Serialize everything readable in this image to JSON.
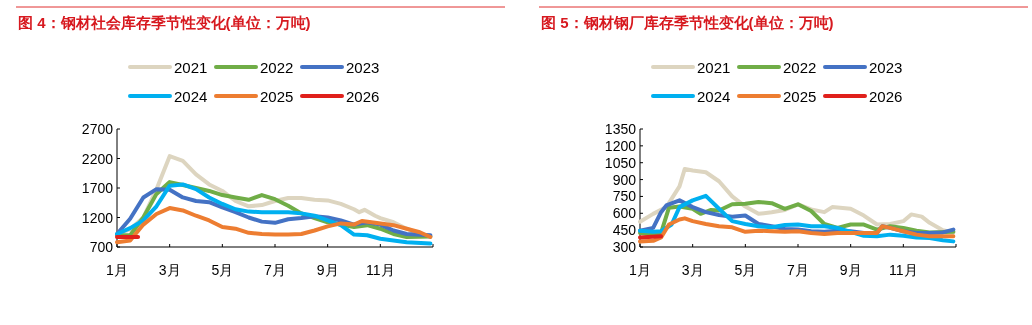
{
  "chart_data": [
    {
      "type": "line",
      "title": "图 4：钢材社会库存季节性变化(单位：万吨)",
      "legend": "top",
      "grid": false,
      "xlim": [
        1,
        13
      ],
      "ylim": [
        700,
        2700
      ],
      "yticks": [
        700,
        1200,
        1700,
        2200,
        2700
      ],
      "xticks": [
        {
          "value": 1,
          "label": "1月"
        },
        {
          "value": 3,
          "label": "3月"
        },
        {
          "value": 5,
          "label": "5月"
        },
        {
          "value": 7,
          "label": "7月"
        },
        {
          "value": 9,
          "label": "9月"
        },
        {
          "value": 11,
          "label": "11月"
        }
      ],
      "series": [
        {
          "name": "2021",
          "color": "#ddd5c0",
          "x": [
            1,
            1.5,
            2,
            2.5,
            3,
            3.5,
            4,
            4.5,
            5,
            5.5,
            6,
            6.5,
            7,
            7.5,
            8,
            8.5,
            9,
            9.5,
            10,
            10.2,
            10.4,
            10.8,
            11,
            11.5,
            12,
            12.5,
            12.9
          ],
          "values": [
            920,
            1000,
            1200,
            1680,
            2240,
            2160,
            1930,
            1760,
            1650,
            1480,
            1390,
            1410,
            1480,
            1530,
            1530,
            1500,
            1490,
            1430,
            1340,
            1290,
            1330,
            1230,
            1190,
            1120,
            1010,
            920,
            880
          ]
        },
        {
          "name": "2022",
          "color": "#70ad47",
          "x": [
            1,
            1.5,
            2,
            2.5,
            3,
            3.5,
            4,
            4.5,
            5,
            5.5,
            6,
            6.5,
            7,
            7.5,
            8,
            8.5,
            9,
            9.5,
            10,
            10.5,
            11,
            11.5,
            12,
            12.9
          ],
          "values": [
            900,
            900,
            1200,
            1600,
            1800,
            1750,
            1700,
            1650,
            1580,
            1540,
            1500,
            1580,
            1510,
            1400,
            1270,
            1190,
            1120,
            1080,
            1040,
            1070,
            1010,
            920,
            870,
            880
          ]
        },
        {
          "name": "2023",
          "color": "#4472c4",
          "x": [
            1,
            1.5,
            2,
            2.5,
            3,
            3.5,
            4,
            4.5,
            5,
            5.5,
            6,
            6.5,
            7,
            7.5,
            8,
            8.5,
            9,
            9.5,
            10,
            10.5,
            11,
            11.5,
            12,
            12.9
          ],
          "values": [
            920,
            1180,
            1540,
            1680,
            1670,
            1540,
            1480,
            1460,
            1370,
            1290,
            1200,
            1130,
            1110,
            1170,
            1190,
            1220,
            1200,
            1150,
            1080,
            1120,
            1080,
            980,
            920,
            900
          ]
        },
        {
          "name": "2024",
          "color": "#00b0f0",
          "x": [
            1,
            1.5,
            2,
            2.5,
            3,
            3.5,
            4,
            4.5,
            5,
            5.5,
            6,
            6.5,
            7,
            7.5,
            8,
            8.5,
            9,
            9.5,
            10,
            10.5,
            11,
            11.5,
            12,
            12.9
          ],
          "values": [
            920,
            1020,
            1150,
            1390,
            1740,
            1760,
            1680,
            1540,
            1430,
            1340,
            1300,
            1290,
            1290,
            1290,
            1270,
            1230,
            1150,
            1070,
            910,
            900,
            840,
            810,
            780,
            760
          ]
        },
        {
          "name": "2025",
          "color": "#ed7d31",
          "x": [
            1,
            1.5,
            2,
            2.5,
            3,
            3.5,
            4,
            4.5,
            5,
            5.5,
            6,
            6.5,
            7,
            7.5,
            8,
            8.5,
            9,
            9.5,
            10,
            10.3,
            10.8,
            11.5,
            12,
            12.5,
            12.9
          ],
          "values": [
            780,
            810,
            1080,
            1260,
            1360,
            1320,
            1230,
            1150,
            1040,
            1010,
            940,
            920,
            910,
            910,
            920,
            980,
            1050,
            1100,
            1080,
            1140,
            1110,
            1070,
            1010,
            950,
            870
          ]
        },
        {
          "name": "2026",
          "color": "#e0201b",
          "x": [
            1,
            1.8
          ],
          "values": [
            870,
            870
          ]
        }
      ]
    },
    {
      "type": "line",
      "title": "图 5：钢材钢厂库存季节性变化(单位：万吨)",
      "legend": "top",
      "grid": false,
      "xlim": [
        1,
        13
      ],
      "ylim": [
        300,
        1350
      ],
      "yticks": [
        300,
        450,
        600,
        750,
        900,
        1050,
        1200,
        1350
      ],
      "xticks": [
        {
          "value": 1,
          "label": "1月"
        },
        {
          "value": 3,
          "label": "3月"
        },
        {
          "value": 5,
          "label": "5月"
        },
        {
          "value": 7,
          "label": "7月"
        },
        {
          "value": 9,
          "label": "9月"
        },
        {
          "value": 11,
          "label": "11月"
        }
      ],
      "series": [
        {
          "name": "2021",
          "color": "#ddd5c0",
          "x": [
            1,
            1.5,
            2,
            2.5,
            2.7,
            3,
            3.5,
            4,
            4.5,
            5,
            5.5,
            6,
            6.5,
            7,
            7.5,
            8,
            8.3,
            9,
            9.5,
            10,
            10.5,
            11,
            11.3,
            11.7,
            12,
            12.5,
            12.9
          ],
          "values": [
            525,
            595,
            655,
            840,
            995,
            980,
            965,
            885,
            750,
            660,
            595,
            610,
            630,
            680,
            635,
            610,
            655,
            640,
            580,
            500,
            505,
            530,
            590,
            570,
            515,
            450,
            430
          ]
        },
        {
          "name": "2022",
          "color": "#70ad47",
          "x": [
            1,
            1.5,
            1.8,
            2.1,
            2.5,
            3,
            3.3,
            3.7,
            4,
            4.5,
            5,
            5.5,
            6,
            6.5,
            7,
            7.5,
            8,
            8.5,
            9,
            9.5,
            10,
            10.5,
            11,
            11.5,
            12,
            12.9
          ],
          "values": [
            425,
            410,
            425,
            650,
            660,
            640,
            595,
            630,
            625,
            680,
            685,
            700,
            690,
            640,
            680,
            620,
            505,
            470,
            500,
            500,
            455,
            485,
            470,
            445,
            430,
            435
          ]
        },
        {
          "name": "2023",
          "color": "#4472c4",
          "x": [
            1,
            1.5,
            1.8,
            2,
            2.5,
            3,
            3.5,
            4,
            4.5,
            5,
            5.5,
            6,
            6.5,
            7,
            7.5,
            8,
            8.5,
            9,
            9.5,
            10,
            10.2,
            10.5,
            11,
            11.5,
            12,
            12.5,
            12.9
          ],
          "values": [
            445,
            470,
            610,
            670,
            715,
            655,
            610,
            585,
            570,
            580,
            505,
            485,
            460,
            455,
            440,
            435,
            445,
            440,
            425,
            425,
            485,
            470,
            440,
            425,
            425,
            430,
            455
          ]
        },
        {
          "name": "2024",
          "color": "#00b0f0",
          "x": [
            1,
            1.5,
            1.8,
            2.2,
            2.5,
            3,
            3.5,
            4,
            4.5,
            5,
            5.5,
            6,
            6.5,
            7,
            7.5,
            8,
            8.5,
            9,
            9.5,
            10,
            10.5,
            11,
            11.5,
            12,
            12.5,
            12.9
          ],
          "values": [
            445,
            435,
            440,
            500,
            655,
            715,
            755,
            640,
            530,
            505,
            485,
            475,
            495,
            500,
            485,
            485,
            470,
            435,
            400,
            395,
            410,
            400,
            385,
            380,
            360,
            350
          ]
        },
        {
          "name": "2025",
          "color": "#ed7d31",
          "x": [
            1,
            1.5,
            1.8,
            2.1,
            2.5,
            2.7,
            3,
            3.5,
            4,
            4.5,
            5,
            5.5,
            6,
            6.5,
            7,
            7.5,
            8,
            8.5,
            9,
            9.5,
            10,
            10.2,
            10.5,
            11,
            11.5,
            12,
            12.5,
            12.9
          ],
          "values": [
            350,
            355,
            385,
            500,
            545,
            555,
            530,
            505,
            485,
            475,
            435,
            445,
            440,
            435,
            440,
            425,
            415,
            425,
            425,
            425,
            425,
            485,
            470,
            440,
            410,
            395,
            395,
            395
          ]
        },
        {
          "name": "2026",
          "color": "#e0201b",
          "x": [
            1,
            1.8
          ],
          "values": [
            385,
            395
          ]
        }
      ]
    }
  ]
}
